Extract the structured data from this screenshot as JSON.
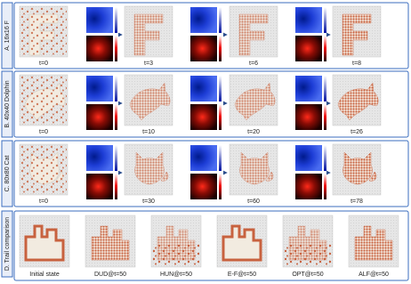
{
  "rows": [
    {
      "label": "A. 16x16 F",
      "frames": [
        "t=0",
        "t=3",
        "t=6",
        "t=8"
      ]
    },
    {
      "label": "B. 40x40 Dolphin",
      "frames": [
        "t=0",
        "t=10",
        "t=20",
        "t=26"
      ]
    },
    {
      "label": "C. 80x80 Cat",
      "frames": [
        "t=0",
        "t=30",
        "t=60",
        "t=78"
      ]
    }
  ],
  "comparison": {
    "label": "D. Trail comparison",
    "panels": [
      "Initial state",
      "DUD@t=50",
      "HUN@t=50",
      "E-F@t=50",
      "OPT@t=50",
      "ALF@t=50"
    ]
  }
}
